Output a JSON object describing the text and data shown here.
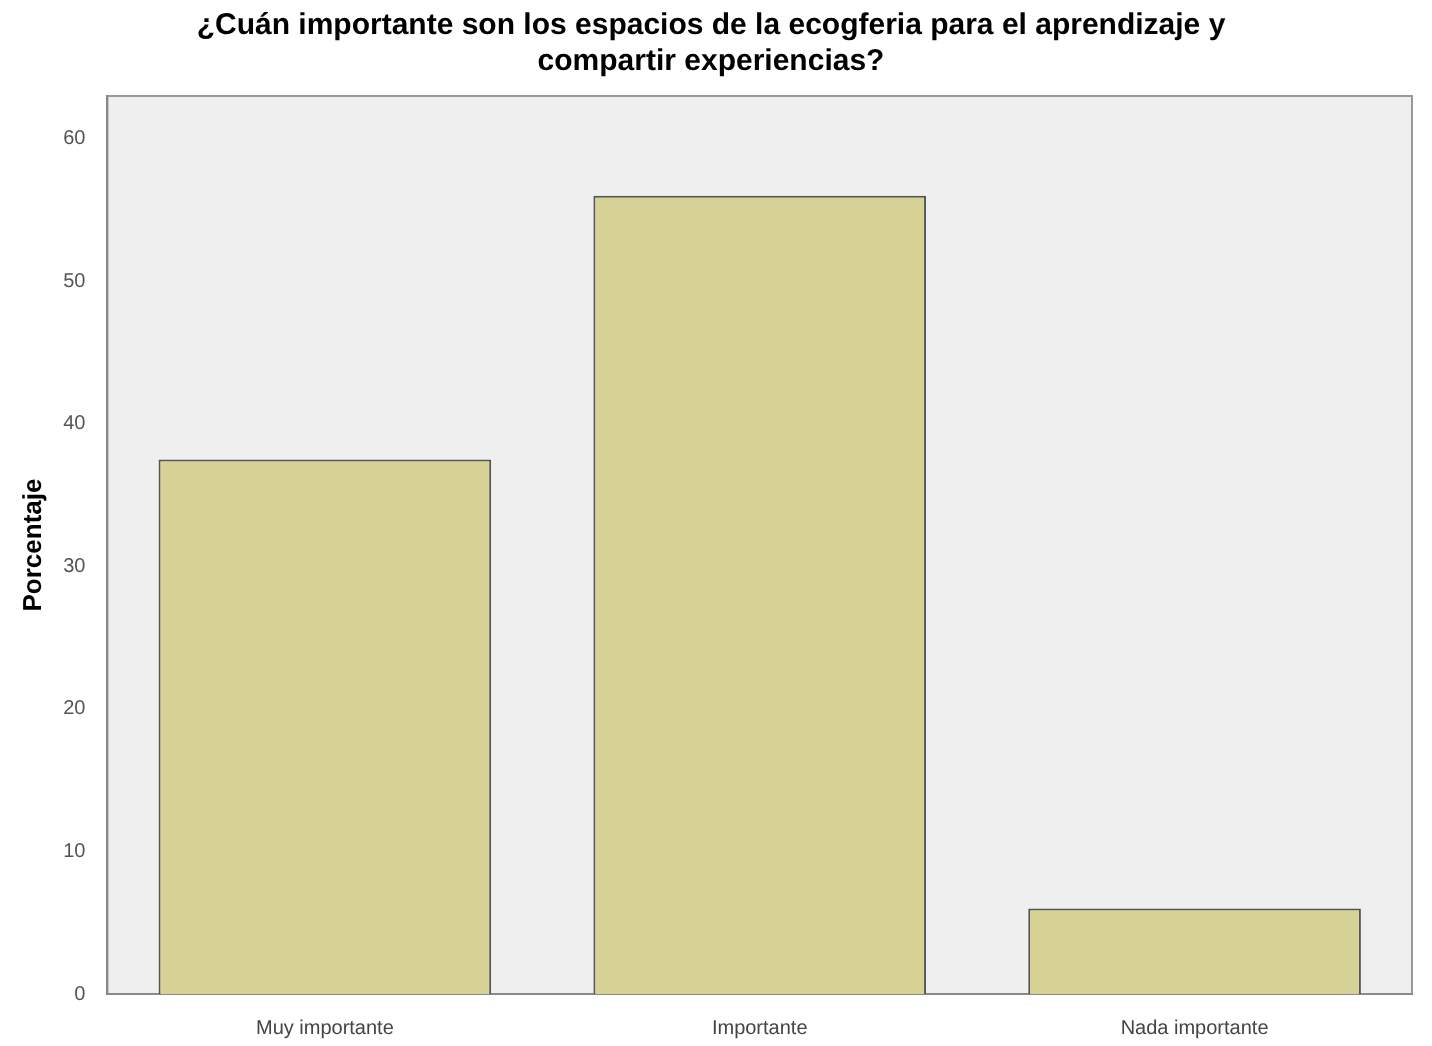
{
  "chart_data": {
    "type": "bar",
    "title": [
      "¿Cuán importante son los espacios de la ecogferia para el aprendizaje y",
      "compartir experiencias?"
    ],
    "ylabel": "Porcentaje",
    "categories": [
      "Muy importante",
      "Importante",
      "Nada importante"
    ],
    "values": [
      37.5,
      56,
      6
    ],
    "color": "#d6d194",
    "ylim": [
      0,
      63
    ],
    "yticks": [
      0,
      10,
      20,
      30,
      40,
      50,
      60
    ],
    "grid": false,
    "legend": false
  }
}
